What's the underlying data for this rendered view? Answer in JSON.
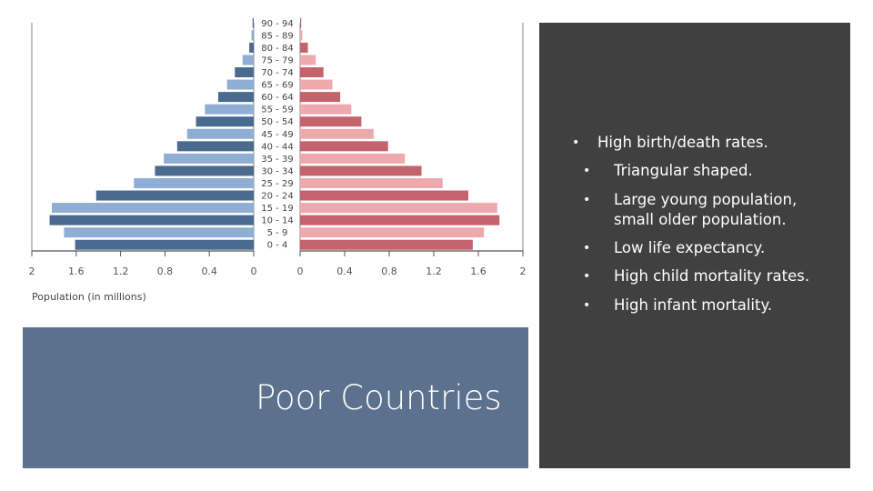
{
  "slide": {
    "title": "Poor Countries",
    "bullets": [
      "High birth/death rates.",
      "Triangular shaped.",
      "Large young population, small older population.",
      "Low life expectancy.",
      "High child mortality rates.",
      "High infant mortality."
    ],
    "colors": {
      "panel_blue": "#5b718d",
      "panel_dark": "#404040"
    }
  },
  "chart_data": {
    "type": "bar",
    "orientation": "horizontal",
    "xlabel": "Population (in millions)",
    "age_groups": [
      "0 - 4",
      "5 - 9",
      "10 - 14",
      "15 - 19",
      "20 - 24",
      "25 - 29",
      "30 - 34",
      "35 - 39",
      "40 - 44",
      "45 - 49",
      "50 - 54",
      "55 - 59",
      "60 - 64",
      "65 - 69",
      "70 - 74",
      "75 - 79",
      "80 - 84",
      "85 - 89",
      "90 - 94"
    ],
    "left_ticks": [
      "2",
      "1.6",
      "1.2",
      "0.8",
      "0.4",
      "0"
    ],
    "right_ticks": [
      "0",
      "0.4",
      "0.8",
      "1.2",
      "1.6",
      "2"
    ],
    "xlim": [
      0,
      2
    ],
    "series": [
      {
        "side": "left",
        "color_dark": "#4b6a8f",
        "color_light": "#8faed3",
        "values": [
          1.61,
          1.71,
          1.84,
          1.82,
          1.42,
          1.08,
          0.89,
          0.81,
          0.69,
          0.6,
          0.52,
          0.44,
          0.32,
          0.24,
          0.17,
          0.1,
          0.04,
          0.02,
          0.01
        ]
      },
      {
        "side": "right",
        "color_dark": "#c4636b",
        "color_light": "#eea9ae",
        "values": [
          1.55,
          1.65,
          1.79,
          1.77,
          1.51,
          1.28,
          1.09,
          0.94,
          0.79,
          0.66,
          0.55,
          0.46,
          0.36,
          0.29,
          0.21,
          0.14,
          0.07,
          0.02,
          0.01
        ]
      }
    ]
  }
}
